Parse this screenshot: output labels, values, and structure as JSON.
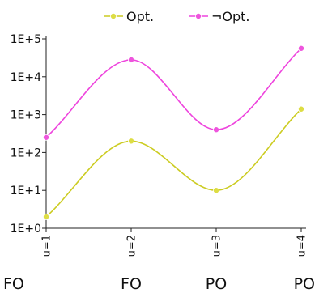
{
  "chart_data": {
    "type": "line",
    "title": "",
    "xlabel": "",
    "ylabel": "",
    "x": [
      "u=1",
      "u=2",
      "u=3",
      "u=4"
    ],
    "group_labels": [
      "FO",
      "FO",
      "PO",
      "PO"
    ],
    "y_scale": "log",
    "ylim": [
      1,
      100000
    ],
    "y_ticks": [
      {
        "value": 1,
        "label": "1E+0"
      },
      {
        "value": 10,
        "label": "1E+1"
      },
      {
        "value": 100,
        "label": "1E+2"
      },
      {
        "value": 1000,
        "label": "1E+3"
      },
      {
        "value": 10000,
        "label": "1E+4"
      },
      {
        "value": 100000,
        "label": "1E+5"
      }
    ],
    "grid": false,
    "legend_position": "top",
    "smooth": true,
    "series": [
      {
        "name": "Opt.",
        "color": "#cccc22",
        "marker_fill": "#dddd44",
        "values": [
          2,
          200,
          10,
          1400
        ]
      },
      {
        "name": "¬Opt.",
        "color": "#ee44dd",
        "marker_fill": "#ee55dd",
        "values": [
          250,
          28000,
          400,
          56000
        ]
      }
    ]
  }
}
